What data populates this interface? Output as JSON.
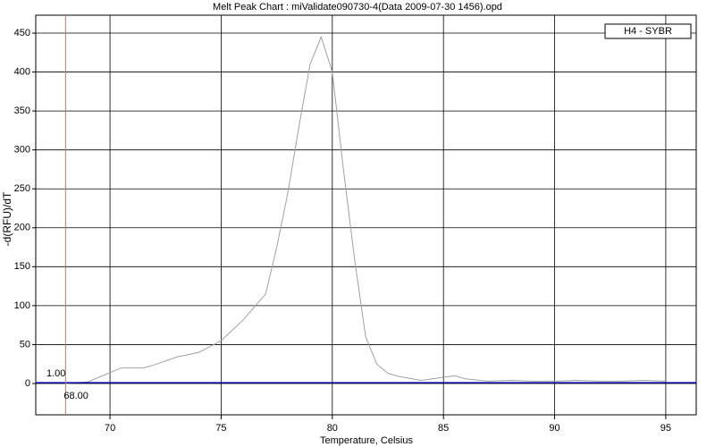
{
  "chart_data": {
    "type": "line",
    "title": "Melt Peak Chart : miValidate090730-4(Data 2009-07-30 1456).opd",
    "x_label": "Temperature, Celsius",
    "y_label": "-d(RFU)/dT",
    "x": [
      68,
      69,
      70,
      70.5,
      71.5,
      72,
      73,
      74,
      75,
      76,
      77,
      77.5,
      78,
      78.5,
      79,
      79.5,
      80,
      80.5,
      81,
      81.5,
      82,
      82.5,
      83,
      84,
      85,
      85.5,
      86,
      87,
      88,
      89,
      90,
      91,
      92,
      93,
      94,
      95
    ],
    "series": [
      {
        "name": "H4 - SYBR",
        "color": "#a0a0a0",
        "values": [
          0,
          2,
          14,
          20,
          20,
          24,
          34,
          40,
          55,
          82,
          115,
          175,
          245,
          330,
          410,
          445,
          400,
          275,
          160,
          60,
          25,
          13,
          9,
          4,
          8,
          10,
          6,
          3,
          4,
          3,
          3,
          4,
          3,
          3,
          4,
          3
        ]
      }
    ],
    "xlim": [
      66.66,
      96.37
    ],
    "ylim": [
      -40.2,
      473
    ],
    "xticks": [
      70,
      75,
      80,
      85,
      90,
      95
    ],
    "yticks": [
      0,
      50,
      100,
      150,
      200,
      250,
      300,
      350,
      400,
      450
    ],
    "grid": true,
    "threshold": {
      "value": 1,
      "label": "1.00",
      "color": "#0000a0"
    },
    "cursor": {
      "value": 68,
      "label": "68.00",
      "color": "#e07030"
    },
    "legend": "upper right"
  }
}
